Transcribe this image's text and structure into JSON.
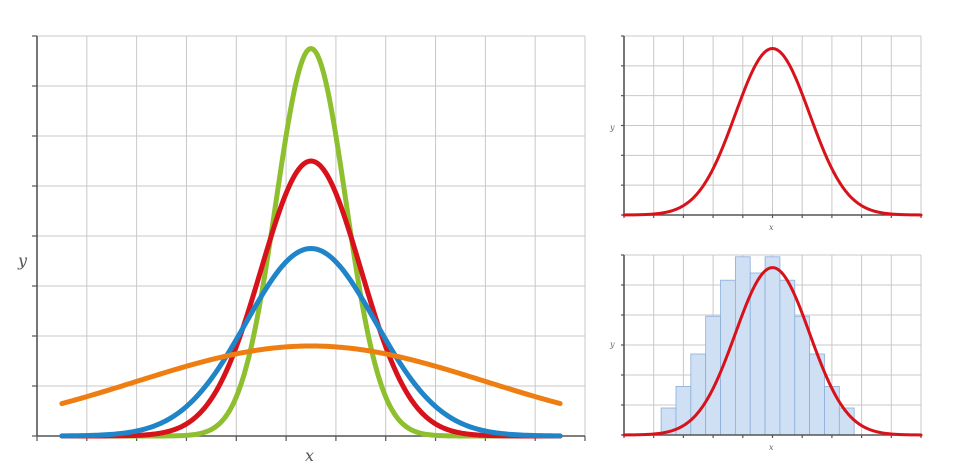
{
  "chart_data": [
    {
      "type": "line",
      "title": "",
      "xlabel": "x",
      "ylabel": "y",
      "xlim": [
        -5.5,
        5
      ],
      "ylim": [
        0,
        8
      ],
      "grid": true,
      "series": [
        {
          "color": "#8dbf2e",
          "mean": 0,
          "sd": 0.7,
          "peak": 7.75
        },
        {
          "color": "#d8121a",
          "mean": 0,
          "sd": 1.0,
          "peak": 5.5
        },
        {
          "color": "#1f85c8",
          "mean": 0,
          "sd": 1.3,
          "peak": 3.75
        },
        {
          "color": "#ee7d12",
          "mean": 0,
          "sd": 3.5,
          "peak": 1.8
        }
      ]
    },
    {
      "type": "line",
      "title": "",
      "xlabel": "x",
      "ylabel": "y",
      "xlim": [
        -3,
        3
      ],
      "ylim": [
        0,
        1
      ],
      "grid": true,
      "series": [
        {
          "color": "#d8121a",
          "mean": 0,
          "sd": 0.75,
          "peak": 0.93
        }
      ]
    },
    {
      "type": "bar",
      "title": "",
      "xlabel": "x",
      "ylabel": "y",
      "xlim": [
        -3,
        3
      ],
      "ylim": [
        0,
        1
      ],
      "grid": true,
      "histogram": {
        "fill": "#cfe0f5",
        "edge": "#8aaed8",
        "bins": [
          -2.1,
          -1.8,
          -1.5,
          -1.2,
          -0.9,
          -0.6,
          -0.3,
          0,
          0.3,
          0.6,
          0.9,
          1.2,
          1.5,
          1.8
        ],
        "values": [
          0.15,
          0.27,
          0.45,
          0.66,
          0.86,
          0.99,
          0.9,
          0.99,
          0.86,
          0.66,
          0.45,
          0.27,
          0.15
        ],
        "bin_width": 0.3
      },
      "series": [
        {
          "color": "#d8121a",
          "mean": 0,
          "sd": 0.75,
          "peak": 0.93
        }
      ]
    }
  ]
}
